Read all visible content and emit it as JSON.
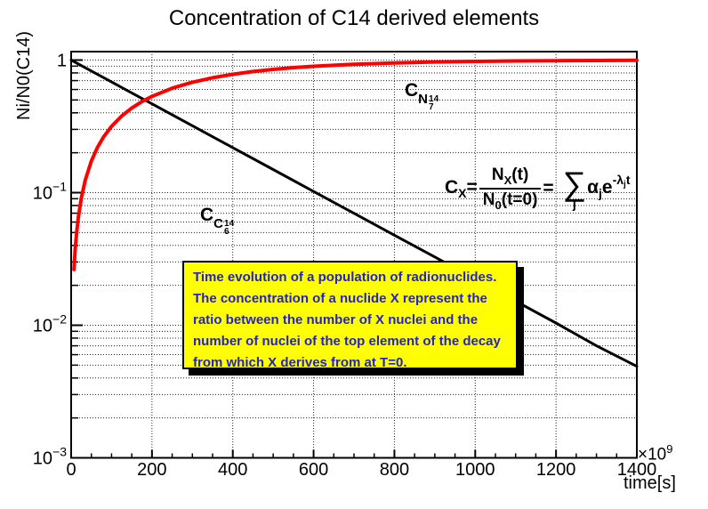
{
  "title": "Concentration of C14 derived elements",
  "axes": {
    "y_title": "Ni/N0(C14)",
    "x_title": "time[s]",
    "x_power_base": "×10",
    "x_power_exp": "9",
    "x_ticks": [
      {
        "v": 0,
        "label": "0"
      },
      {
        "v": 200,
        "label": "200"
      },
      {
        "v": 400,
        "label": "400"
      },
      {
        "v": 600,
        "label": "600"
      },
      {
        "v": 800,
        "label": "800"
      },
      {
        "v": 1000,
        "label": "1000"
      },
      {
        "v": 1200,
        "label": "1200"
      },
      {
        "v": 1400,
        "label": "1400"
      }
    ],
    "x_minor_step": 50,
    "y_ticks": [
      {
        "v": 1,
        "base": "1",
        "exp": ""
      },
      {
        "v": 0.1,
        "base": "10",
        "exp": "−1"
      },
      {
        "v": 0.01,
        "base": "10",
        "exp": "−2"
      },
      {
        "v": 0.001,
        "base": "10",
        "exp": "−3"
      }
    ]
  },
  "chart_data": {
    "type": "line",
    "title": "Concentration of C14 derived elements",
    "xlabel": "time[s] ×10^9",
    "ylabel": "Ni/N0(C14)",
    "xlim": [
      0,
      1400
    ],
    "ylim": [
      0.001,
      1.16
    ],
    "y_scale": "log",
    "grid": true,
    "series": [
      {
        "name": "C(C6-14) decay concentration",
        "color": "#000000",
        "width": 3,
        "points": [
          [
            0,
            1.0
          ],
          [
            50,
            0.8269
          ],
          [
            100,
            0.6837
          ],
          [
            150,
            0.5653
          ],
          [
            200,
            0.4674
          ],
          [
            300,
            0.3196
          ],
          [
            400,
            0.2185
          ],
          [
            500,
            0.1494
          ],
          [
            600,
            0.1021
          ],
          [
            700,
            0.0699
          ],
          [
            800,
            0.0478
          ],
          [
            900,
            0.0327
          ],
          [
            1000,
            0.0223
          ],
          [
            1100,
            0.0152
          ],
          [
            1200,
            0.0104
          ],
          [
            1300,
            0.007
          ],
          [
            1400,
            0.0049
          ]
        ]
      },
      {
        "name": "C(N7-14) growth concentration",
        "color": "#ff0000",
        "width": 4,
        "points": [
          [
            7,
            0.0263
          ],
          [
            10,
            0.0373
          ],
          [
            14,
            0.0518
          ],
          [
            18,
            0.0662
          ],
          [
            25,
            0.0907
          ],
          [
            35,
            0.1246
          ],
          [
            50,
            0.1732
          ],
          [
            65,
            0.219
          ],
          [
            80,
            0.2623
          ],
          [
            100,
            0.3163
          ],
          [
            125,
            0.3783
          ],
          [
            150,
            0.4347
          ],
          [
            175,
            0.4859
          ],
          [
            200,
            0.5324
          ],
          [
            250,
            0.6135
          ],
          [
            300,
            0.6804
          ],
          [
            350,
            0.7357
          ],
          [
            400,
            0.7815
          ],
          [
            450,
            0.8193
          ],
          [
            500,
            0.8506
          ],
          [
            550,
            0.8765
          ],
          [
            600,
            0.8979
          ],
          [
            700,
            0.9301
          ],
          [
            800,
            0.9522
          ],
          [
            900,
            0.9674
          ],
          [
            1000,
            0.9777
          ],
          [
            1100,
            0.9848
          ],
          [
            1200,
            0.9897
          ],
          [
            1300,
            0.993
          ],
          [
            1400,
            0.9951
          ]
        ]
      }
    ]
  },
  "annotations": {
    "label_n14": {
      "main": "C",
      "nuclide": "N",
      "mass": "14",
      "atomic": "7"
    },
    "label_c14": {
      "main": "C",
      "nuclide": "C",
      "mass": "14",
      "atomic": "6"
    },
    "formula": {
      "lhs_main": "C",
      "lhs_sub": "X",
      "eq1": "=",
      "num_main": "N",
      "num_sub": "X",
      "num_paren": "(t)",
      "den_main": "N",
      "den_sub": "0",
      "den_paren": "(t=0)",
      "eq2": "=",
      "sum_symbol": "∑",
      "sum_index": "j",
      "coef_main": "α",
      "coef_sub": "j",
      "exp_base": "e",
      "exp_minus": "-",
      "exp_lambda": "λ",
      "exp_lambda_sub": "j",
      "exp_t": "t"
    },
    "note": {
      "bg": "#ffff00",
      "text_color": "#2222cc",
      "lines": [
        "Time evolution of a population of radionuclides.",
        "The concentration of a nuclide X represent the",
        "ratio between the number of X nuclei and the",
        "number of nuclei of the top element of the decay",
        "from which X derives from at T=0."
      ]
    }
  },
  "colors": {
    "background": "#ffffff",
    "frame": "#000000",
    "grid": "#000000",
    "decay_curve": "#000000",
    "growth_curve": "#ff0000",
    "note_bg": "#ffff00",
    "note_text": "#2222cc"
  }
}
